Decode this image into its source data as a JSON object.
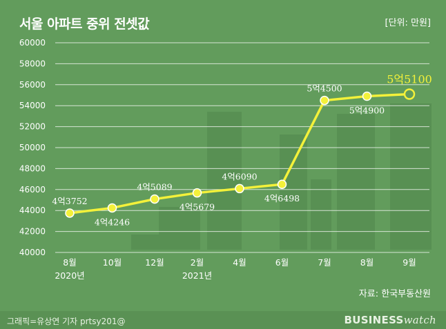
{
  "header": {
    "title": "서울 아파트 중위 전셋값",
    "unit": "[단위: 만원]"
  },
  "source": "자료: 한국부동산원",
  "footer": {
    "credit": "그래픽=유상연 기자 prtsy201@",
    "logo_main": "BUSINESS",
    "logo_sub": "watch"
  },
  "colors": {
    "background": "#629c5c",
    "line": "#f3f13a",
    "marker_fill": "#f3f13a",
    "marker_stroke": "#ffffff",
    "highlight_fill": "#629c5c",
    "grid": "#ffffff"
  },
  "chart_data": {
    "type": "line",
    "title": "서울 아파트 중위 전셋값",
    "ylabel": "",
    "xlabel": "",
    "ylim": [
      40000,
      60000
    ],
    "yticks": [
      40000,
      42000,
      44000,
      46000,
      48000,
      50000,
      52000,
      54000,
      56000,
      58000,
      60000
    ],
    "grid": "horizontal",
    "categories": [
      "8월",
      "10월",
      "12월",
      "2월",
      "4월",
      "6월",
      "7월",
      "8월",
      "9월"
    ],
    "year_labels": [
      "2020년",
      "",
      "",
      "2021년",
      "",
      "",
      "",
      "",
      ""
    ],
    "values": [
      43752,
      44246,
      45089,
      45679,
      46090,
      46498,
      54500,
      54900,
      55100
    ],
    "data_labels": [
      "4억3752",
      "4억4246",
      "4억5089",
      "4억5679",
      "4억6090",
      "4억6498",
      "5억4500",
      "5억4900",
      "5억5100"
    ],
    "label_positions": [
      "above",
      "below",
      "above",
      "below",
      "above",
      "below",
      "above",
      "below",
      "above"
    ],
    "highlight_index": 8
  }
}
